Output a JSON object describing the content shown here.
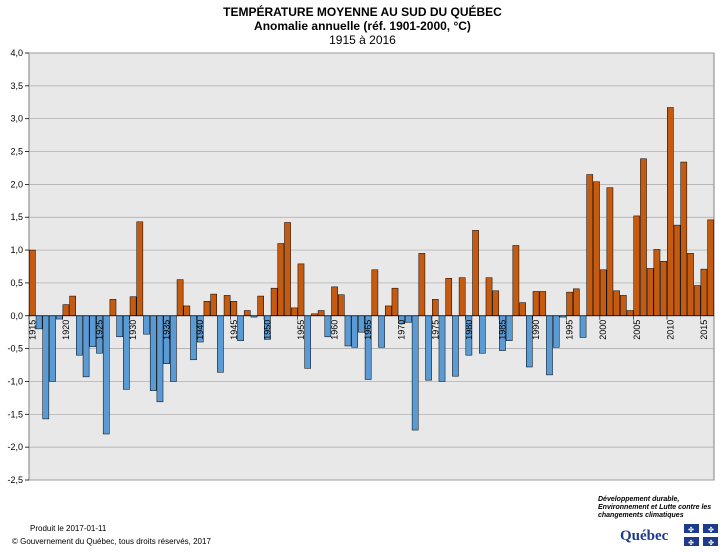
{
  "chart_data": {
    "type": "bar",
    "title": "TEMPÉRATURE MOYENNE AU SUD DU QUÉBEC",
    "subtitle": "Anomalie annuelle (réf. 1901-2000, °C)",
    "period": "1915 à 2016",
    "xlabel": "",
    "ylabel": "",
    "ylim": [
      -2.5,
      4.0
    ],
    "yticks": [
      "-2,5",
      "-2,0",
      "-1,5",
      "-1,0",
      "-0,5",
      "0,0",
      "0,5",
      "1,0",
      "1,5",
      "2,0",
      "2,5",
      "3,0",
      "3,5",
      "4,0"
    ],
    "xticks": [
      "1915",
      "1920",
      "1925",
      "1930",
      "1935",
      "1940",
      "1945",
      "1950",
      "1955",
      "1960",
      "1965",
      "1970",
      "1975",
      "1980",
      "1985",
      "1990",
      "1995",
      "2000",
      "2005",
      "2010",
      "2015"
    ],
    "grid": true,
    "colors": {
      "positive": "#c55a11",
      "negative": "#5b9bd5",
      "plot_bg": "#e8e8e8"
    },
    "x": [
      1915,
      1916,
      1917,
      1918,
      1919,
      1920,
      1921,
      1922,
      1923,
      1924,
      1925,
      1926,
      1927,
      1928,
      1929,
      1930,
      1931,
      1932,
      1933,
      1934,
      1935,
      1936,
      1937,
      1938,
      1939,
      1940,
      1941,
      1942,
      1943,
      1944,
      1945,
      1946,
      1947,
      1948,
      1949,
      1950,
      1951,
      1952,
      1953,
      1954,
      1955,
      1956,
      1957,
      1958,
      1959,
      1960,
      1961,
      1962,
      1963,
      1964,
      1965,
      1966,
      1967,
      1968,
      1969,
      1970,
      1971,
      1972,
      1973,
      1974,
      1975,
      1976,
      1977,
      1978,
      1979,
      1980,
      1981,
      1982,
      1983,
      1984,
      1985,
      1986,
      1987,
      1988,
      1989,
      1990,
      1991,
      1992,
      1993,
      1994,
      1995,
      1996,
      1997,
      1998,
      1999,
      2000,
      2001,
      2002,
      2003,
      2004,
      2005,
      2006,
      2007,
      2008,
      2009,
      2010,
      2011,
      2012,
      2013,
      2014,
      2015,
      2016
    ],
    "values": [
      1.0,
      -0.2,
      -1.57,
      -1.0,
      -0.05,
      0.17,
      0.3,
      -0.6,
      -0.93,
      -0.47,
      -0.57,
      -1.8,
      0.25,
      -0.32,
      -1.12,
      0.29,
      1.43,
      -0.28,
      -1.14,
      -1.31,
      -0.73,
      -1.0,
      0.55,
      0.15,
      -0.67,
      -0.4,
      0.22,
      0.33,
      -0.86,
      0.31,
      0.22,
      -0.38,
      0.08,
      -0.02,
      0.3,
      -0.36,
      0.42,
      1.1,
      1.42,
      0.12,
      0.79,
      -0.8,
      0.03,
      0.08,
      -0.32,
      0.44,
      0.32,
      -0.46,
      -0.48,
      -0.25,
      -0.97,
      0.7,
      -0.48,
      0.15,
      0.42,
      -0.12,
      -0.1,
      -1.74,
      0.95,
      -0.98,
      0.25,
      -1.0,
      0.57,
      -0.92,
      0.58,
      -0.6,
      1.3,
      -0.57,
      0.58,
      0.38,
      -0.53,
      -0.38,
      1.07,
      0.2,
      -0.78,
      0.37,
      0.37,
      -0.9,
      -0.48,
      -0.02,
      0.36,
      0.41,
      -0.33,
      2.15,
      2.04,
      0.7,
      1.95,
      0.38,
      0.31,
      0.08,
      1.52,
      2.39,
      0.72,
      1.01,
      0.83,
      3.17,
      1.38,
      2.34,
      0.95,
      0.46,
      0.71,
      1.46
    ]
  },
  "footer": {
    "produced": "Produit le 2017-01-11",
    "copyright": "© Gouvernement du Québec, tous droits réservés, 2017"
  },
  "branding": {
    "ministry": "Développement durable, Environnement et Lutte contre les changements climatiques",
    "wordmark": "Québec",
    "flag_color": "#1d3b8c"
  }
}
